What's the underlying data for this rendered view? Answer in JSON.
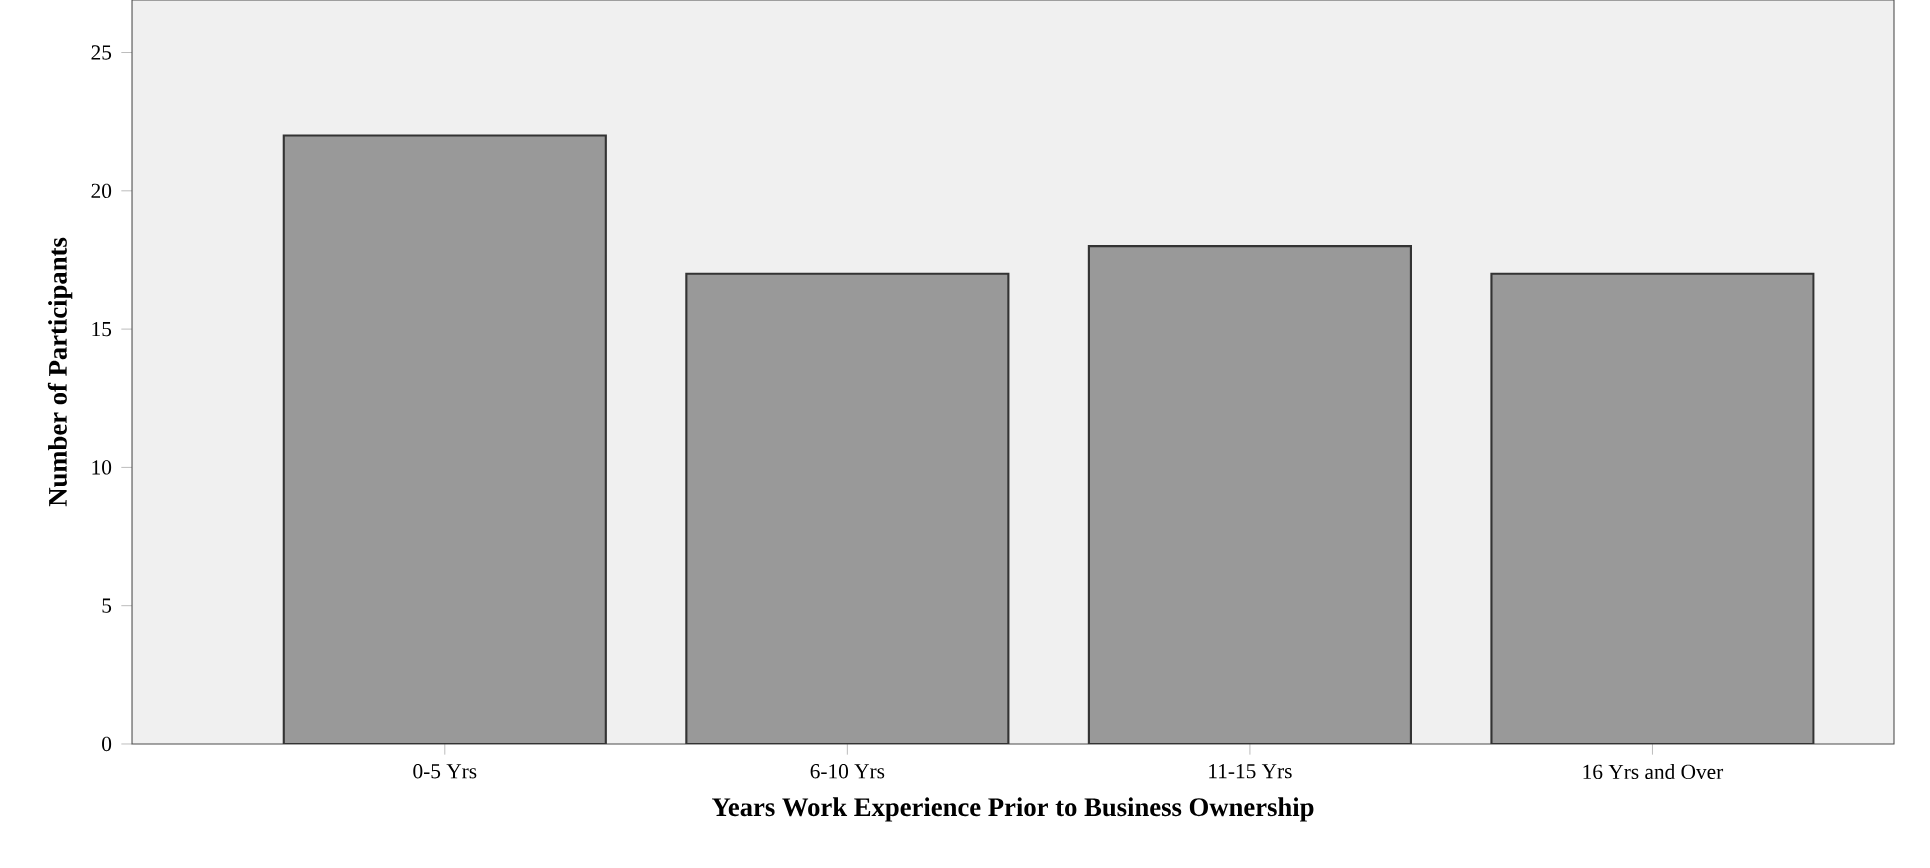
{
  "chart_data": {
    "type": "bar",
    "xlabel": "Years Work Experience Prior to Business Ownership",
    "ylabel": "Number of Participants",
    "categories": [
      "0-5 Yrs",
      "6-10 Yrs",
      "11-15 Yrs",
      "16 Yrs and Over"
    ],
    "values": [
      22,
      17,
      18,
      17
    ],
    "color": "#999999",
    "ylim": [
      0,
      26.9
    ],
    "yticks": [
      0,
      5,
      10,
      15,
      20,
      25
    ]
  }
}
